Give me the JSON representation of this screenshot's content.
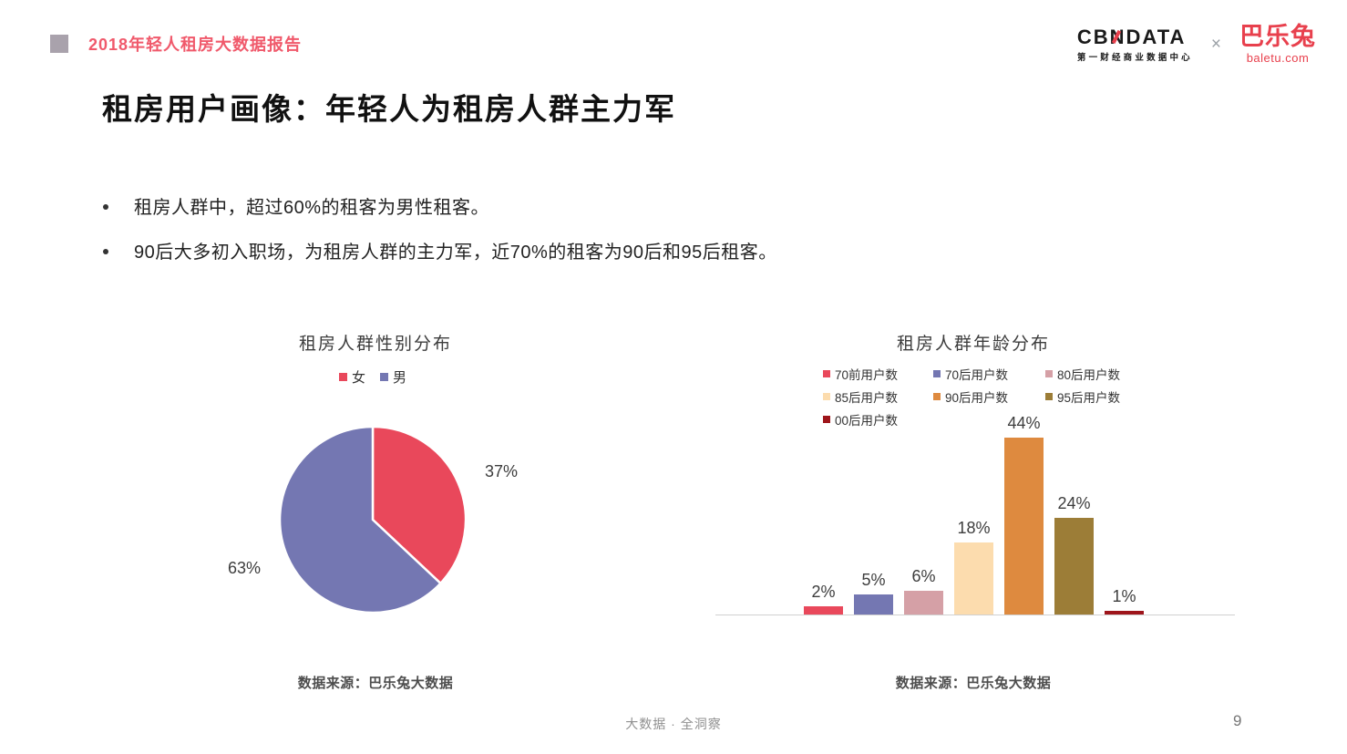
{
  "header": {
    "report_title": "2018年轻人租房大数据报告",
    "cbndata_logo": {
      "part1": "CB",
      "part2": "N",
      "part3": "DATA",
      "subtitle": "第一财经商业数据中心"
    },
    "cross": "×",
    "baletu_logo": {
      "name": "巴乐兔",
      "subtitle": "baletu.com"
    }
  },
  "title": "租房用户画像：年轻人为租房人群主力军",
  "bullets": [
    "租房人群中，超过60%的租客为男性租客。",
    "90后大多初入职场，为租房人群的主力军，近70%的租客为90后和95后租客。"
  ],
  "chart_data": [
    {
      "type": "pie",
      "title": "租房人群性别分布",
      "legend": [
        "女",
        "男"
      ],
      "values": [
        37,
        63
      ],
      "labels": [
        "37%",
        "63%"
      ],
      "colors": [
        "#e9485b",
        "#7477b2"
      ],
      "legend_position": "top",
      "source": "数据来源：巴乐兔大数据"
    },
    {
      "type": "bar",
      "title": "租房人群年龄分布",
      "categories": [
        "70前用户数",
        "70后用户数",
        "80后用户数",
        "85后用户数",
        "90后用户数",
        "95后用户数",
        "00后用户数"
      ],
      "values": [
        2,
        5,
        6,
        18,
        44,
        24,
        1
      ],
      "value_labels": [
        "2%",
        "5%",
        "6%",
        "18%",
        "44%",
        "24%",
        "1%"
      ],
      "colors": [
        "#e9485b",
        "#7477b2",
        "#d5a0a6",
        "#fcdcae",
        "#de8a3f",
        "#9c7d37",
        "#9e151b"
      ],
      "ylim": [
        0,
        50
      ],
      "grid": false,
      "legend_position": "top",
      "source": "数据来源：巴乐兔大数据"
    }
  ],
  "footer": {
    "tagline": "大数据 · 全洞察",
    "page_number": "9"
  }
}
